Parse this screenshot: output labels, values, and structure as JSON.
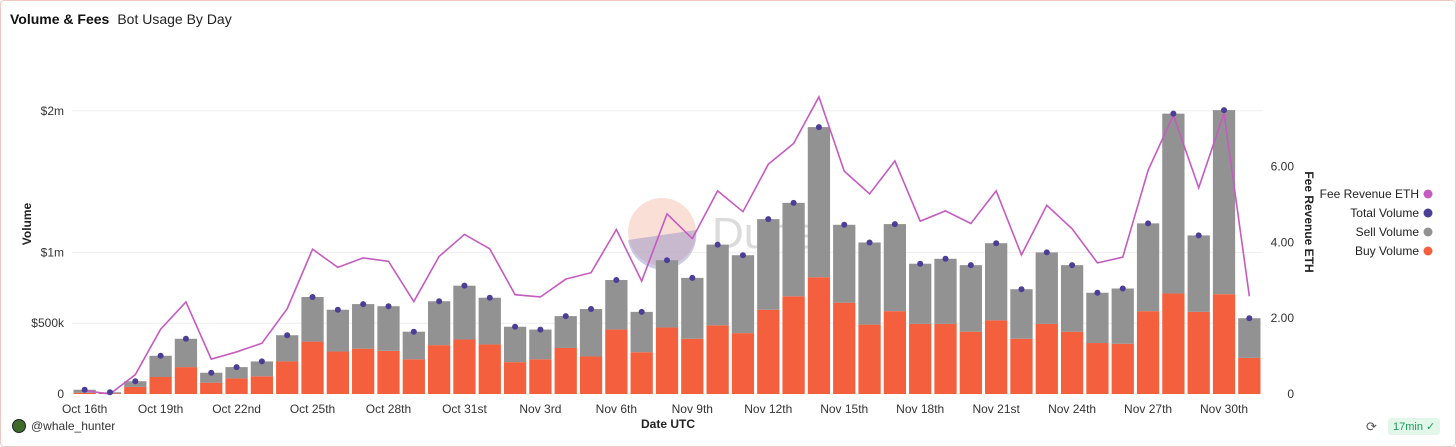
{
  "header": {
    "title": "Volume & Fees",
    "subtitle": "Bot Usage By Day"
  },
  "footer": {
    "user": "@whale_hunter",
    "age": "17min",
    "refresh_icon": "refresh-icon",
    "check_icon": "check-circle-icon"
  },
  "watermark": "Dune",
  "chart_data": {
    "type": "bar",
    "stacked": true,
    "title": "",
    "xlabel": "Date UTC",
    "ylabel": "Volume",
    "y2label": "Fee Revenue ETH",
    "ylim": [
      0,
      2500000
    ],
    "y2lim": [
      0,
      9.34
    ],
    "yticks": [
      {
        "v": 0,
        "label": "0"
      },
      {
        "v": 500000,
        "label": "$500k"
      },
      {
        "v": 1000000,
        "label": "$1m"
      },
      {
        "v": 2000000,
        "label": "$2m"
      }
    ],
    "y2ticks": [
      {
        "v": 0,
        "label": "0"
      },
      {
        "v": 2,
        "label": "2.00"
      },
      {
        "v": 4,
        "label": "4.00"
      },
      {
        "v": 6,
        "label": "6.00"
      }
    ],
    "xticks": [
      {
        "i": 0,
        "label": "Oct 16th"
      },
      {
        "i": 3,
        "label": "Oct 19th"
      },
      {
        "i": 6,
        "label": "Oct 22nd"
      },
      {
        "i": 9,
        "label": "Oct 25th"
      },
      {
        "i": 12,
        "label": "Oct 28th"
      },
      {
        "i": 15,
        "label": "Oct 31st"
      },
      {
        "i": 18,
        "label": "Nov 3rd"
      },
      {
        "i": 21,
        "label": "Nov 6th"
      },
      {
        "i": 24,
        "label": "Nov 9th"
      },
      {
        "i": 27,
        "label": "Nov 12th"
      },
      {
        "i": 30,
        "label": "Nov 15th"
      },
      {
        "i": 33,
        "label": "Nov 18th"
      },
      {
        "i": 36,
        "label": "Nov 21st"
      },
      {
        "i": 39,
        "label": "Nov 24th"
      },
      {
        "i": 42,
        "label": "Nov 27th"
      },
      {
        "i": 45,
        "label": "Nov 30th"
      }
    ],
    "categories": [
      "2023-10-16",
      "2023-10-17",
      "2023-10-18",
      "2023-10-19",
      "2023-10-20",
      "2023-10-21",
      "2023-10-22",
      "2023-10-23",
      "2023-10-24",
      "2023-10-25",
      "2023-10-26",
      "2023-10-27",
      "2023-10-28",
      "2023-10-29",
      "2023-10-30",
      "2023-10-31",
      "2023-11-01",
      "2023-11-02",
      "2023-11-03",
      "2023-11-04",
      "2023-11-05",
      "2023-11-06",
      "2023-11-07",
      "2023-11-08",
      "2023-11-09",
      "2023-11-10",
      "2023-11-11",
      "2023-11-12",
      "2023-11-13",
      "2023-11-14",
      "2023-11-15",
      "2023-11-16",
      "2023-11-17",
      "2023-11-18",
      "2023-11-19",
      "2023-11-20",
      "2023-11-21",
      "2023-11-22",
      "2023-11-23",
      "2023-11-24",
      "2023-11-25",
      "2023-11-26",
      "2023-11-27",
      "2023-11-28",
      "2023-11-29",
      "2023-11-30",
      "2023-12-01"
    ],
    "series": [
      {
        "name": "Buy Volume",
        "color": "#f4603e",
        "values": [
          8000,
          4000,
          50000,
          120000,
          190000,
          80000,
          110000,
          125000,
          230000,
          370000,
          300000,
          320000,
          305000,
          245000,
          345000,
          385000,
          350000,
          225000,
          245000,
          325000,
          265000,
          455000,
          295000,
          470000,
          390000,
          485000,
          430000,
          595000,
          690000,
          825000,
          645000,
          490000,
          585000,
          495000,
          495000,
          440000,
          520000,
          390000,
          495000,
          440000,
          360000,
          355000,
          585000,
          710000,
          580000,
          705000,
          255000
        ]
      },
      {
        "name": "Sell Volume",
        "color": "#929292",
        "values": [
          22000,
          8000,
          40000,
          150000,
          200000,
          70000,
          80000,
          105000,
          185000,
          315000,
          295000,
          315000,
          315000,
          195000,
          310000,
          380000,
          330000,
          250000,
          210000,
          225000,
          335000,
          350000,
          285000,
          475000,
          430000,
          570000,
          550000,
          640000,
          660000,
          1060000,
          550000,
          580000,
          615000,
          425000,
          460000,
          470000,
          545000,
          350000,
          505000,
          470000,
          355000,
          390000,
          620000,
          1270000,
          540000,
          1300000,
          280000
        ]
      },
      {
        "name": "Total Volume",
        "color": "#4b3e96",
        "values": [
          30000,
          12000,
          90000,
          270000,
          390000,
          150000,
          190000,
          230000,
          415000,
          685000,
          595000,
          635000,
          620000,
          440000,
          655000,
          765000,
          680000,
          475000,
          455000,
          550000,
          600000,
          805000,
          580000,
          945000,
          820000,
          1055000,
          980000,
          1235000,
          1350000,
          1885000,
          1195000,
          1070000,
          1200000,
          920000,
          955000,
          910000,
          1065000,
          740000,
          1000000,
          910000,
          715000,
          745000,
          1205000,
          1980000,
          1120000,
          2005000,
          535000
        ]
      },
      {
        "name": "Fee Revenue ETH",
        "color": "#c55bc0",
        "values": [
          0.09,
          0.0,
          0.51,
          1.71,
          2.43,
          0.92,
          1.11,
          1.34,
          2.25,
          3.82,
          3.34,
          3.59,
          3.5,
          2.44,
          3.63,
          4.21,
          3.83,
          2.62,
          2.56,
          3.03,
          3.2,
          4.34,
          2.98,
          4.75,
          4.1,
          5.36,
          4.81,
          6.06,
          6.61,
          7.84,
          5.88,
          5.28,
          6.15,
          4.56,
          4.83,
          4.5,
          5.36,
          3.67,
          4.98,
          4.36,
          3.46,
          3.61,
          5.9,
          7.36,
          5.44,
          7.41,
          2.58
        ]
      }
    ],
    "legend": {
      "placement": "right",
      "entries": [
        "Fee Revenue ETH",
        "Total Volume",
        "Sell Volume",
        "Buy Volume"
      ]
    },
    "grid": true
  }
}
